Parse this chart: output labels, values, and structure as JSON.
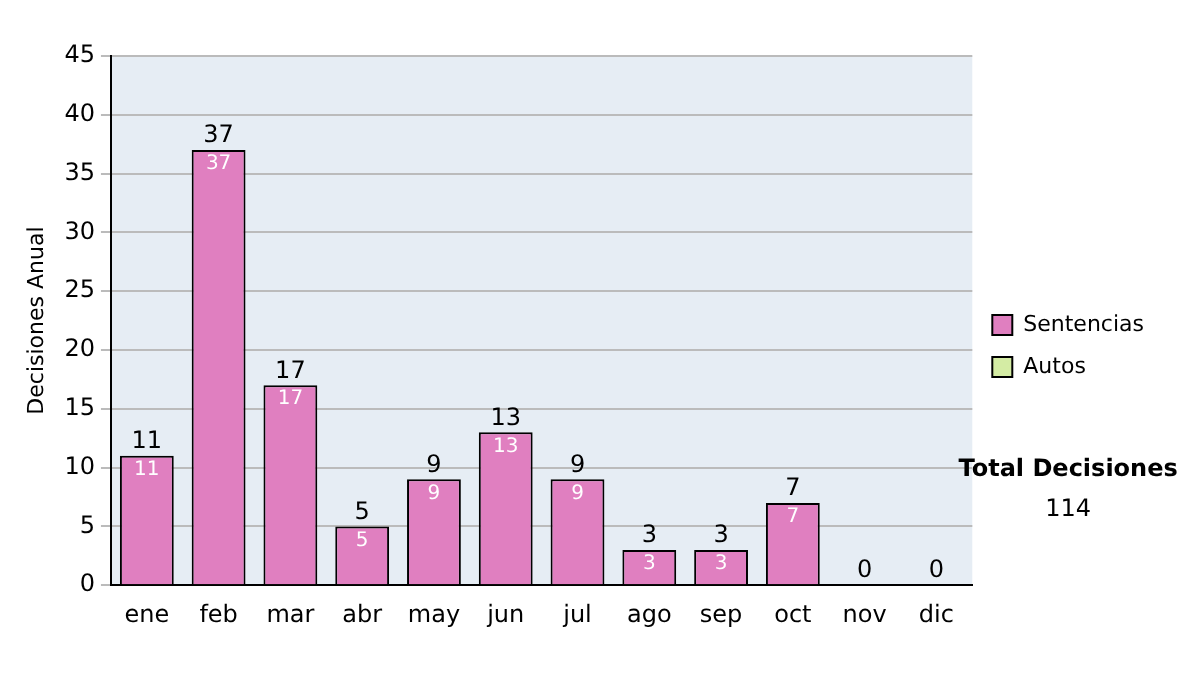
{
  "chart_data": {
    "type": "bar",
    "ylabel": "Decisiones Anual",
    "categories": [
      "ene",
      "feb",
      "mar",
      "abr",
      "may",
      "jun",
      "jul",
      "ago",
      "sep",
      "oct",
      "nov",
      "dic"
    ],
    "series": [
      {
        "name": "Sentencias",
        "color": "#e07fc0",
        "values": [
          11,
          37,
          17,
          5,
          9,
          13,
          9,
          3,
          3,
          7,
          0,
          0
        ],
        "value_labels": [
          "11",
          "37",
          "17",
          "5",
          "9",
          "13",
          "9",
          "3",
          "3",
          "7",
          null,
          null
        ]
      },
      {
        "name": "Autos",
        "color": "#d4eca4",
        "values": [
          0,
          0,
          0,
          0,
          0,
          0,
          0,
          0,
          0,
          0,
          0,
          0
        ]
      }
    ],
    "stacked": true,
    "totals": [
      "11",
      "37",
      "17",
      "5",
      "9",
      "13",
      "9",
      "3",
      "3",
      "7",
      "0",
      "0"
    ],
    "ylim": [
      0,
      45
    ],
    "yticks": [
      0,
      5,
      10,
      15,
      20,
      25,
      30,
      35,
      40,
      45
    ],
    "grid": "y",
    "legend": "right",
    "annotations": [
      "Total Decisiones",
      "114"
    ]
  }
}
